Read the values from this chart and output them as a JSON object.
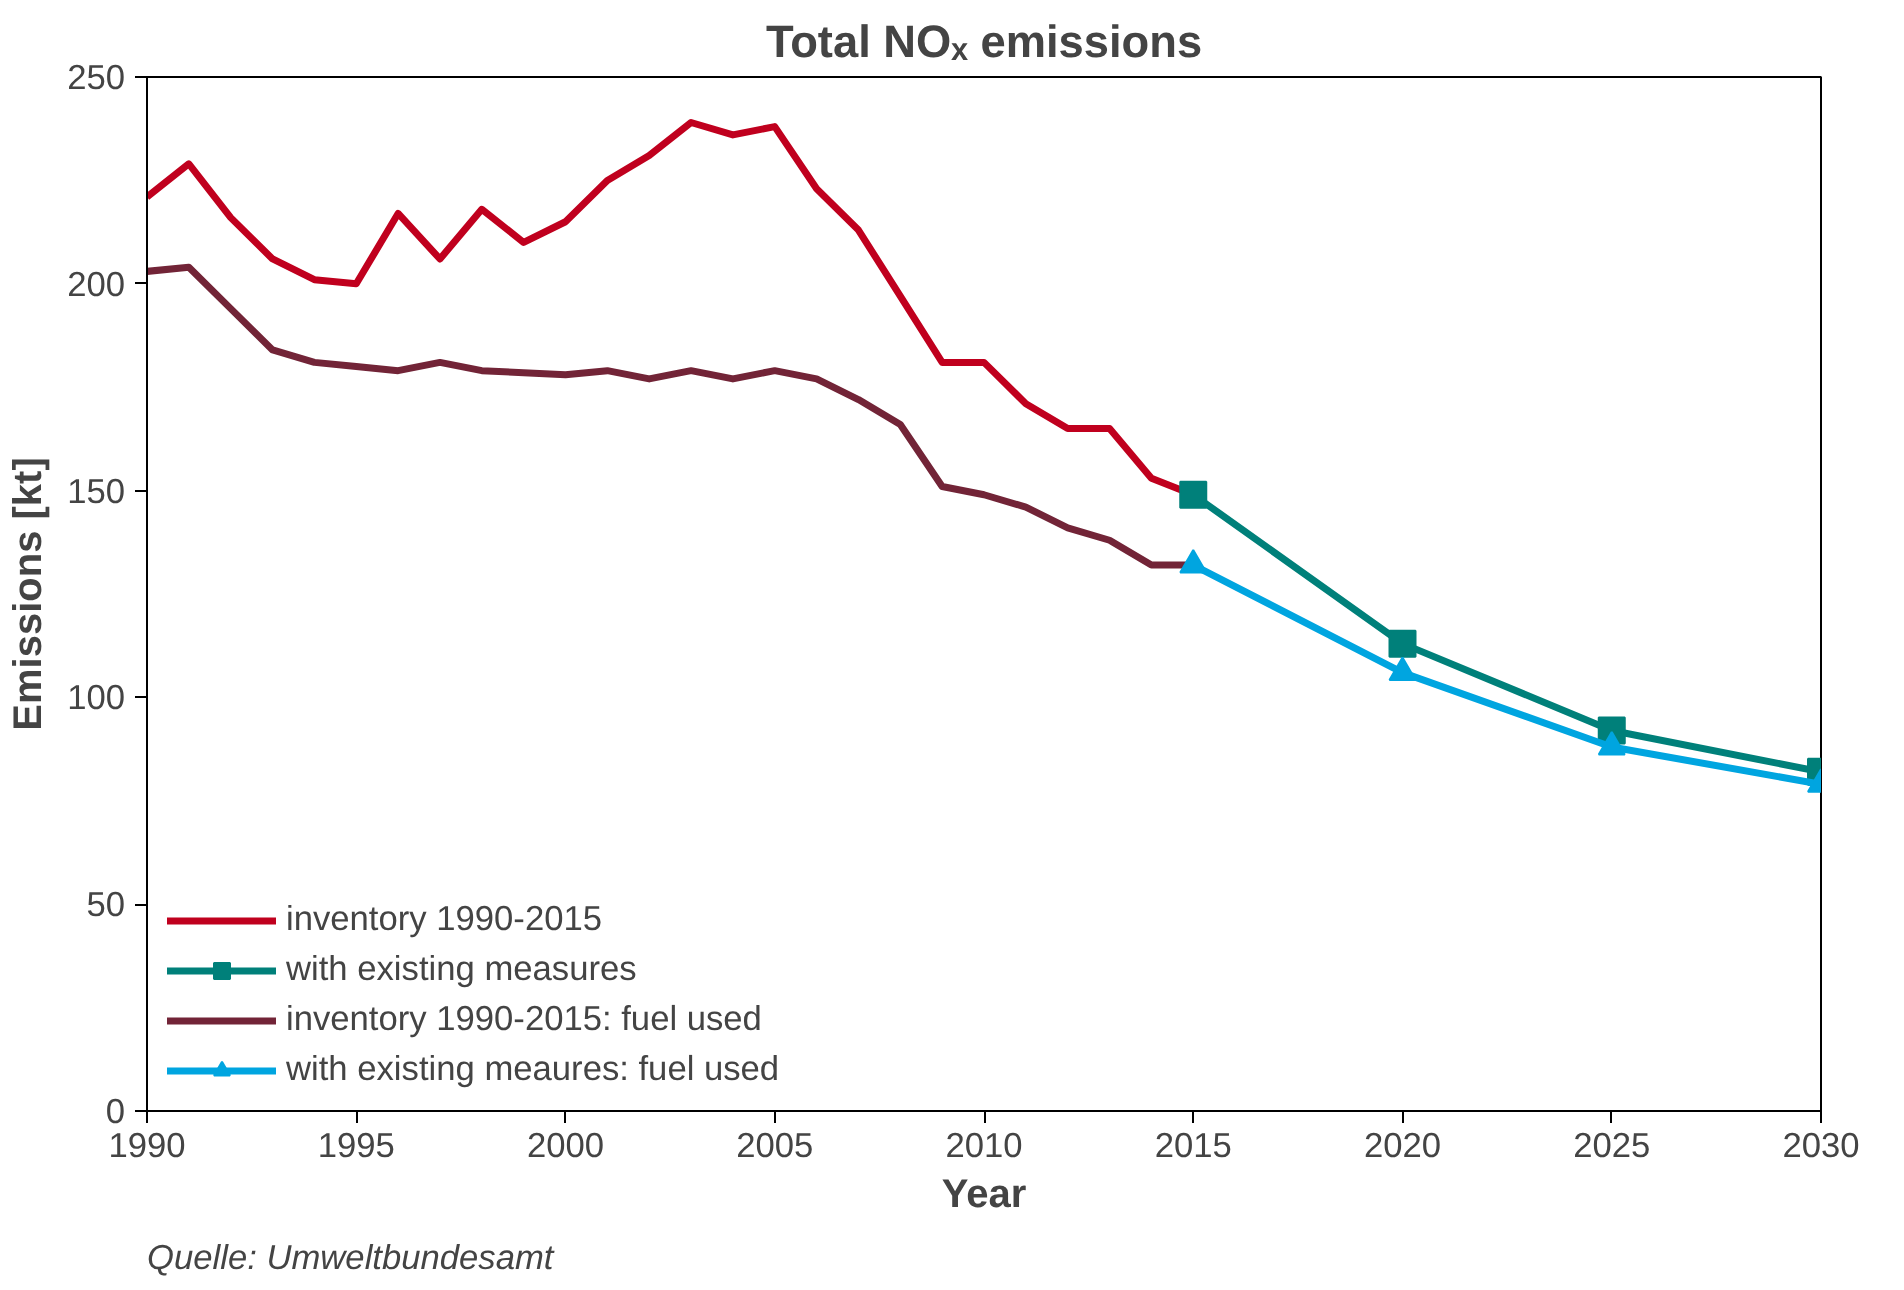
{
  "chart_data": {
    "type": "line",
    "title": "Total NOₓ emissions",
    "xlabel": "Year",
    "ylabel": "Emissions [kt]",
    "xlim": [
      1990,
      2030
    ],
    "xticks": [
      1990,
      1995,
      2000,
      2005,
      2010,
      2015,
      2020,
      2025,
      2030
    ],
    "ylim": [
      0,
      250
    ],
    "yticks": [
      0,
      50,
      100,
      150,
      200,
      250
    ],
    "grid": false,
    "legend": "bottom left",
    "series": [
      {
        "name": "inventory 1990-2015",
        "color": "#c0001e",
        "marker": "none",
        "x": [
          1990,
          1991,
          1992,
          1993,
          1994,
          1995,
          1996,
          1997,
          1998,
          1999,
          2000,
          2001,
          2002,
          2003,
          2004,
          2005,
          2006,
          2007,
          2008,
          2009,
          2010,
          2011,
          2012,
          2013,
          2014,
          2015
        ],
        "values": [
          221,
          229,
          216,
          206,
          201,
          200,
          217,
          206,
          218,
          210,
          215,
          225,
          231,
          239,
          236,
          238,
          223,
          213,
          197,
          181,
          181,
          171,
          165,
          165,
          153,
          149
        ]
      },
      {
        "name": "with existing measures",
        "color": "#00807a",
        "marker": "square",
        "x": [
          2015,
          2020,
          2025,
          2030
        ],
        "values": [
          149,
          113,
          92,
          82
        ]
      },
      {
        "name": "inventory 1990-2015: fuel used",
        "color": "#722437",
        "marker": "none",
        "x": [
          1990,
          1991,
          1992,
          1993,
          1994,
          1995,
          1996,
          1997,
          1998,
          1999,
          2000,
          2001,
          2002,
          2003,
          2004,
          2005,
          2006,
          2007,
          2008,
          2009,
          2010,
          2011,
          2012,
          2013,
          2014,
          2015
        ],
        "values": [
          203,
          204,
          194,
          184,
          181,
          180,
          179,
          181,
          179,
          178.5,
          178,
          179,
          177,
          179,
          177,
          179,
          177,
          172,
          166,
          151,
          149,
          146,
          141,
          138,
          132,
          132
        ]
      },
      {
        "name": "with existing meaures: fuel used",
        "color": "#00a5e0",
        "marker": "triangle",
        "x": [
          2015,
          2020,
          2025,
          2030
        ],
        "values": [
          132,
          106,
          88,
          79
        ]
      }
    ],
    "annotations": [
      "Quelle: Umweltbundesamt"
    ]
  }
}
